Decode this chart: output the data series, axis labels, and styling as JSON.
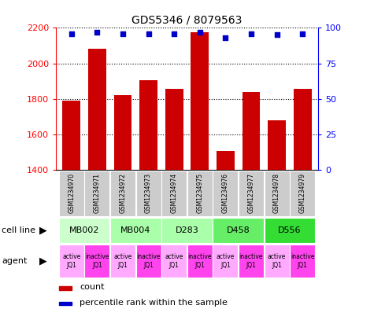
{
  "title": "GDS5346 / 8079563",
  "samples": [
    "GSM1234970",
    "GSM1234971",
    "GSM1234972",
    "GSM1234973",
    "GSM1234974",
    "GSM1234975",
    "GSM1234976",
    "GSM1234977",
    "GSM1234978",
    "GSM1234979"
  ],
  "counts": [
    1790,
    2080,
    1820,
    1905,
    1855,
    2175,
    1505,
    1840,
    1680,
    1855
  ],
  "percentiles": [
    96,
    97,
    96,
    96,
    96,
    97,
    93,
    96,
    95,
    96
  ],
  "ylim_left": [
    1400,
    2200
  ],
  "ylim_right": [
    0,
    100
  ],
  "yticks_left": [
    1400,
    1600,
    1800,
    2000,
    2200
  ],
  "yticks_right": [
    0,
    25,
    50,
    75,
    100
  ],
  "cell_lines": [
    {
      "label": "MB002",
      "start": 0,
      "end": 2,
      "color": "#ccffcc"
    },
    {
      "label": "MB004",
      "start": 2,
      "end": 4,
      "color": "#aaffaa"
    },
    {
      "label": "D283",
      "start": 4,
      "end": 6,
      "color": "#aaffaa"
    },
    {
      "label": "D458",
      "start": 6,
      "end": 8,
      "color": "#66ee66"
    },
    {
      "label": "D556",
      "start": 8,
      "end": 10,
      "color": "#33dd33"
    }
  ],
  "agent_active_color": "#ffaaff",
  "agent_inactive_color": "#ff44ee",
  "bar_color": "#cc0000",
  "dot_color": "#0000cc",
  "bar_width": 0.7,
  "cell_line_label": "cell line",
  "agent_label": "agent",
  "legend_count_color": "#cc0000",
  "legend_dot_color": "#0000cc",
  "sample_box_color": "#cccccc"
}
